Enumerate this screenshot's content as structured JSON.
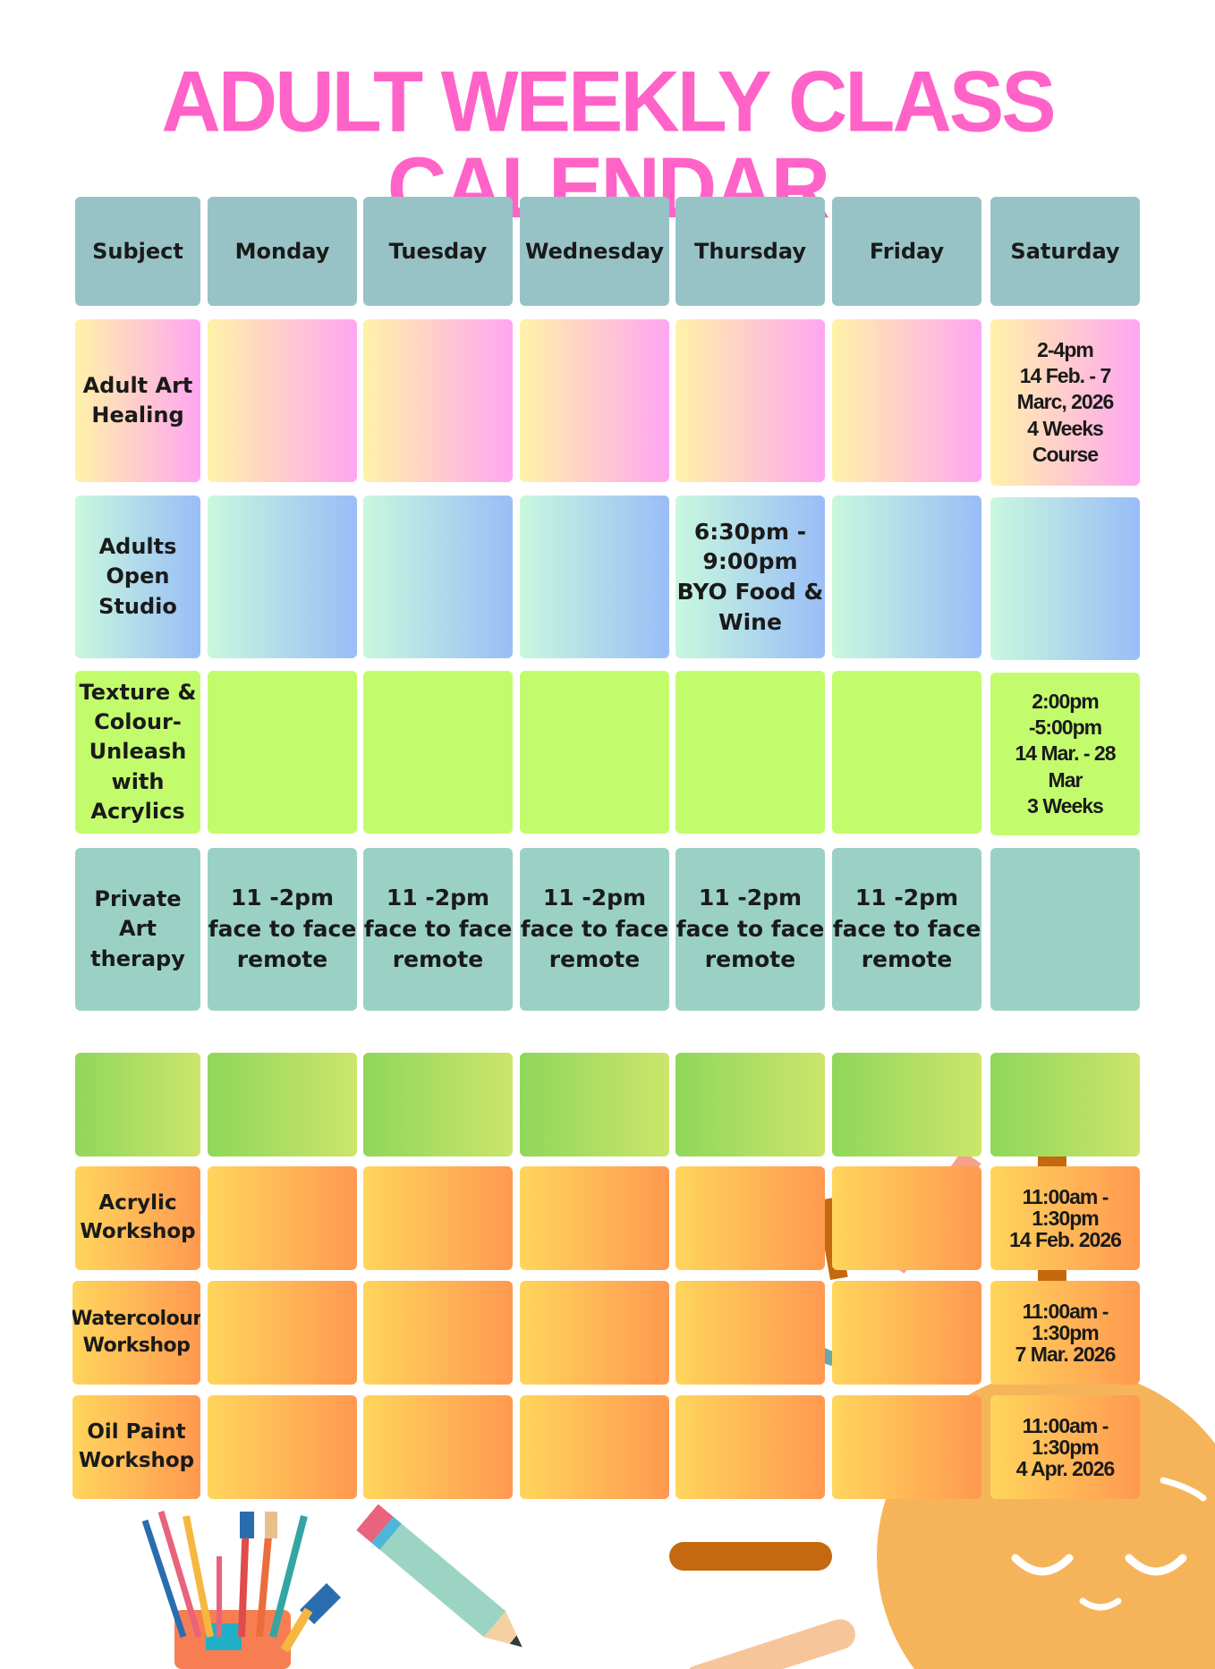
{
  "title": "ADULT WEEKLY CLASS CALENDAR",
  "headers": [
    "Subject",
    "Monday",
    "Tuesday",
    "Wednesday",
    "Thursday",
    "Friday",
    "Saturday"
  ],
  "rows": [
    {
      "subject": "Adult Art\nHealing",
      "cells": [
        "",
        "",
        "",
        "",
        "",
        "2-4pm\n14 Feb. - 7\nMarc, 2026\n4 Weeks\nCourse"
      ]
    },
    {
      "subject": "Adults\nOpen\nStudio",
      "cells": [
        "",
        "",
        "",
        "6:30pm -\n9:00pm\nBYO Food &\nWine",
        "",
        ""
      ]
    },
    {
      "subject": "Texture &\nColour-\nUnleash\nwith\nAcrylics",
      "cells": [
        "",
        "",
        "",
        "",
        "",
        "2:00pm\n-5:00pm\n14 Mar. - 28\nMar\n3 Weeks"
      ]
    },
    {
      "subject": "Private Art\ntherapy",
      "cells": [
        "11 -2pm\nface to face\nremote",
        "11 -2pm\nface to face\nremote",
        "11 -2pm\nface to face\nremote",
        "11 -2pm\nface to face\nremote",
        "11 -2pm\nface to face\nremote",
        ""
      ]
    }
  ],
  "workshops": [
    {
      "subject": "Acrylic\nWorkshop",
      "cells": [
        "",
        "",
        "",
        "",
        "",
        "11:00am -\n1:30pm\n14 Feb. 2026"
      ]
    },
    {
      "subject": "Watercolour\nWorkshop",
      "cells": [
        "",
        "",
        "",
        "",
        "",
        "11:00am -\n1:30pm\n7 Mar. 2026"
      ]
    },
    {
      "subject": "Oil Paint\nWorkshop",
      "cells": [
        "",
        "",
        "",
        "",
        "",
        "11:00am -\n1:30pm\n4 Apr. 2026"
      ]
    }
  ],
  "colors": {
    "title": "#ff63c8",
    "header": "#98c3c6",
    "healing": [
      "#fff2a8",
      "#ffa6f2"
    ],
    "studio": [
      "#c9f8de",
      "#99bdf7"
    ],
    "texture": "#c2fc6d",
    "therapy": "#9bd1c5",
    "workshop_header": [
      "#8fd75a",
      "#cce56b"
    ],
    "workshop": [
      "#ffd55c",
      "#ff9950"
    ]
  }
}
